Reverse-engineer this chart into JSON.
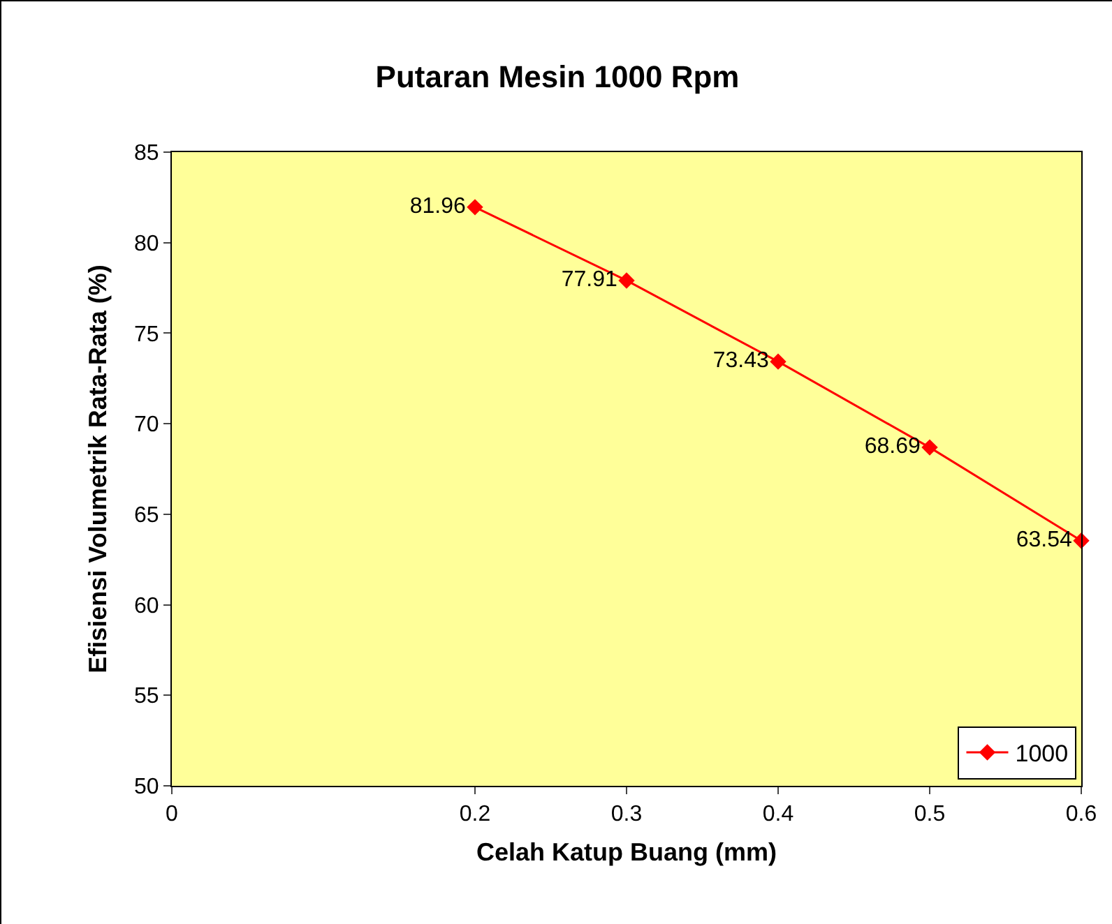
{
  "chart_data": {
    "type": "line",
    "title": "Putaran Mesin 1000 Rpm",
    "xlabel": "Celah Katup Buang (mm)",
    "ylabel": "Efisiensi Volumetrik Rata-Rata (%)",
    "x": [
      0.2,
      0.3,
      0.4,
      0.5,
      0.6
    ],
    "series": [
      {
        "name": "1000",
        "color": "#ff0000",
        "values": [
          81.96,
          77.91,
          73.43,
          68.69,
          63.54
        ]
      }
    ],
    "xlim": [
      0,
      0.6
    ],
    "xticks": [
      0,
      0.2,
      0.3,
      0.4,
      0.5,
      0.6
    ],
    "ylim": [
      50,
      85
    ],
    "yticks": [
      50,
      55,
      60,
      65,
      70,
      75,
      80,
      85
    ],
    "data_labels": true,
    "legend": "bottom right",
    "marker": "diamond",
    "line_style": "solid",
    "grid": false
  }
}
